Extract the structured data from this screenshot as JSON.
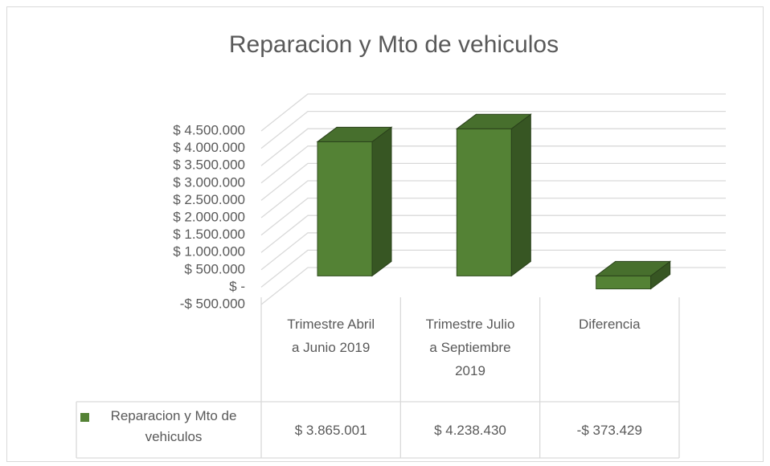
{
  "chart_data": {
    "type": "bar3d",
    "title": "Reparacion y Mto de vehiculos",
    "categories": [
      "Trimestre Abril a Junio 2019",
      "Trimestre Julio a Septiembre 2019",
      "Diferencia"
    ],
    "series": [
      {
        "name": "Reparacion y Mto de vehiculos",
        "color": "#548235",
        "values": [
          3865001,
          4238430,
          -373429
        ],
        "value_labels": [
          "$ 3.865.001",
          "$ 4.238.430",
          "-$ 373.429"
        ]
      }
    ],
    "ylim": [
      -500000,
      4500000
    ],
    "yticks": [
      {
        "value": -500000,
        "label": "-$ 500.000"
      },
      {
        "value": 0,
        "label": "$ -"
      },
      {
        "value": 500000,
        "label": "$ 500.000"
      },
      {
        "value": 1000000,
        "label": "$ 1.000.000"
      },
      {
        "value": 1500000,
        "label": "$ 1.500.000"
      },
      {
        "value": 2000000,
        "label": "$ 2.000.000"
      },
      {
        "value": 2500000,
        "label": "$ 2.500.000"
      },
      {
        "value": 3000000,
        "label": "$ 3.000.000"
      },
      {
        "value": 3500000,
        "label": "$ 3.500.000"
      },
      {
        "value": 4000000,
        "label": "$ 4.000.000"
      },
      {
        "value": 4500000,
        "label": "$ 4.500.000"
      }
    ],
    "grid": true,
    "legend": "table"
  }
}
